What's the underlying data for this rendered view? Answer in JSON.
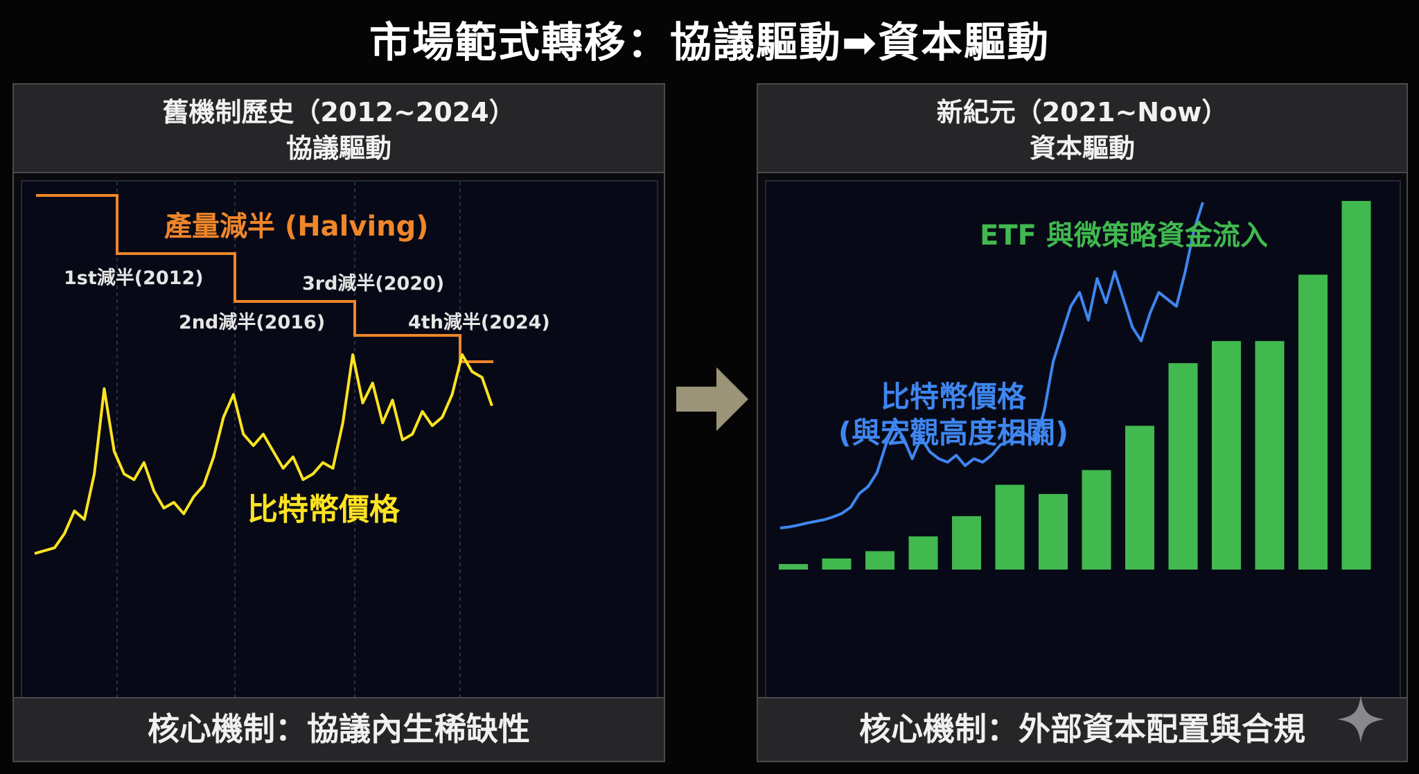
{
  "title": "市場範式轉移：協議驅動➡資本驅動",
  "left_panel": {
    "header_line1": "舊機制歷史（2012~2024）",
    "header_line2": "協議驅動",
    "footer": "核心機制：協議內生稀缺性"
  },
  "right_panel": {
    "header_line1": "新紀元（2021~Now）",
    "header_line2": "資本驅動",
    "footer": "核心機制：外部資本配置與合規"
  },
  "colors": {
    "halving_line": "#f0862a",
    "btc_price_left": "#ffe322",
    "btc_price_right": "#3f86f0",
    "etf_bars": "#41b94f",
    "transition_arrow": "#9c9478"
  },
  "icons": {
    "transition": "right-arrow-icon",
    "sparkle": "sparkle-icon"
  },
  "chart_data": [
    {
      "type": "line",
      "title": "",
      "xlabel": "",
      "ylabel": "",
      "grid": false,
      "series": [
        {
          "name": "產量減半 (Halving)",
          "style": "step",
          "values": [
            4,
            3,
            2,
            1,
            0
          ]
        },
        {
          "name": "比特幣價格",
          "style": "line",
          "values": [
            2,
            3,
            4,
            9,
            17,
            14,
            30,
            60,
            38,
            30,
            28,
            34,
            24,
            18,
            20,
            16,
            22,
            26,
            36,
            50,
            58,
            44,
            40,
            44,
            38,
            32,
            36,
            28,
            30,
            34,
            32,
            48,
            72,
            55,
            62,
            48,
            56,
            42,
            44,
            52,
            47,
            50,
            58,
            72,
            66,
            64,
            54
          ]
        }
      ],
      "annotations": [
        {
          "label": "1st減半(2012)",
          "index": 1
        },
        {
          "label": "2nd減半(2016)",
          "index": 2
        },
        {
          "label": "3rd減半(2020)",
          "index": 3
        },
        {
          "label": "4th減半(2024)",
          "index": 4
        }
      ]
    },
    {
      "type": "bar",
      "title": "",
      "xlabel": "",
      "ylabel": "",
      "grid": false,
      "series": [
        {
          "name": "ETF 與微策略資金流入",
          "style": "bar",
          "values": [
            1.5,
            3,
            5,
            9,
            14.5,
            23,
            20.5,
            27,
            39,
            56,
            62,
            62,
            80,
            100
          ]
        },
        {
          "name": "比特幣價格\n(與宏觀高度相關)",
          "style": "line",
          "values": [
            6,
            6.3,
            6.8,
            7.4,
            7.9,
            8.4,
            9.2,
            10.2,
            12,
            16,
            18,
            22,
            30,
            36,
            32,
            26,
            32,
            28,
            26,
            25,
            27,
            24,
            26,
            25,
            27,
            30,
            31,
            34,
            33,
            31,
            40,
            54,
            62,
            70,
            74,
            66,
            78,
            71,
            80,
            72,
            64,
            60,
            68,
            74,
            72,
            70,
            80,
            92,
            100
          ]
        }
      ]
    }
  ]
}
